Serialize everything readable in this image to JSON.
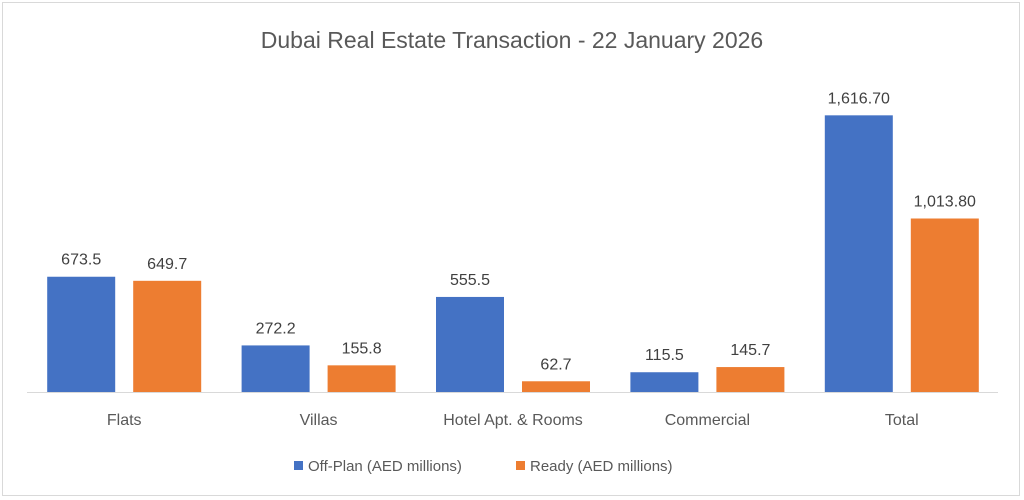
{
  "chart_data": {
    "type": "bar",
    "title": "Dubai Real Estate Transaction - 22 January 2026",
    "categories": [
      "Flats",
      "Villas",
      "Hotel Apt. & Rooms",
      "Commercial",
      "Total"
    ],
    "series": [
      {
        "name": "Off-Plan (AED millions)",
        "color": "#4472C4",
        "values": [
          673.5,
          272.2,
          555.5,
          115.5,
          1616.7
        ],
        "labels": [
          "673.5",
          "272.2",
          "555.5",
          "115.5",
          "1,616.70"
        ]
      },
      {
        "name": "Ready (AED millions)",
        "color": "#ED7D31",
        "values": [
          649.7,
          155.8,
          62.7,
          145.7,
          1013.8
        ],
        "labels": [
          "649.7",
          "155.8",
          "62.7",
          "145.7",
          "1,013.80"
        ]
      }
    ],
    "xlabel": "",
    "ylabel": "",
    "ylim": [
      0,
      1940
    ],
    "grid": false,
    "legend_position": "bottom"
  }
}
